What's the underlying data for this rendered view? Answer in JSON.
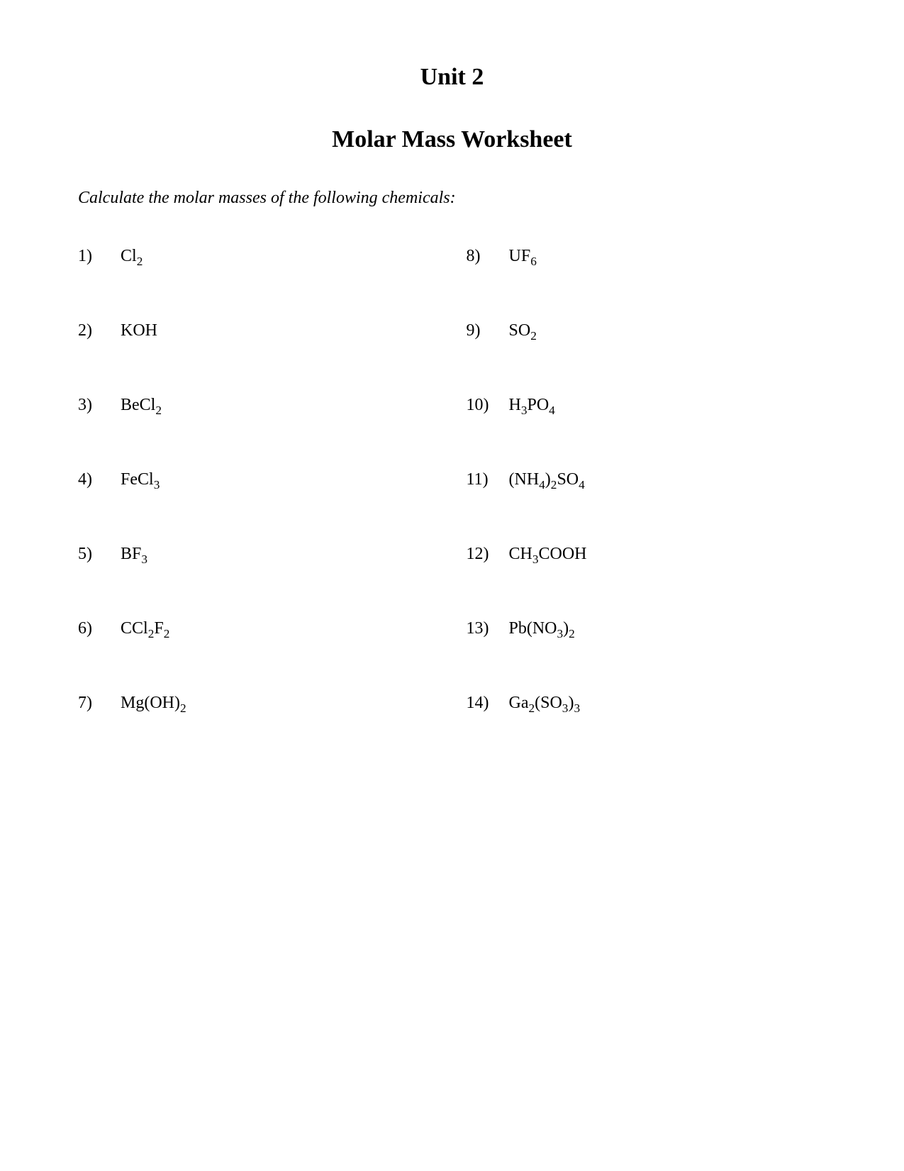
{
  "unit_title": "Unit 2",
  "worksheet_title": "Molar Mass Worksheet",
  "instruction": "Calculate the molar masses of the following chemicals:",
  "font_family": "Times New Roman",
  "title_fontsize": 34,
  "body_fontsize": 24,
  "text_color": "#000000",
  "background_color": "#ffffff",
  "problems_left": [
    {
      "number": "1)",
      "formula_tokens": [
        {
          "t": "Cl"
        },
        {
          "t": "2",
          "sub": true
        }
      ]
    },
    {
      "number": "2)",
      "formula_tokens": [
        {
          "t": "KOH"
        }
      ]
    },
    {
      "number": "3)",
      "formula_tokens": [
        {
          "t": "BeCl"
        },
        {
          "t": "2",
          "sub": true
        }
      ]
    },
    {
      "number": "4)",
      "formula_tokens": [
        {
          "t": "FeCl"
        },
        {
          "t": "3",
          "sub": true
        }
      ]
    },
    {
      "number": "5)",
      "formula_tokens": [
        {
          "t": "BF"
        },
        {
          "t": "3",
          "sub": true
        }
      ]
    },
    {
      "number": "6)",
      "formula_tokens": [
        {
          "t": "CCl"
        },
        {
          "t": "2",
          "sub": true
        },
        {
          "t": "F"
        },
        {
          "t": "2",
          "sub": true
        }
      ]
    },
    {
      "number": "7)",
      "formula_tokens": [
        {
          "t": "Mg(OH)"
        },
        {
          "t": "2",
          "sub": true
        }
      ]
    }
  ],
  "problems_right": [
    {
      "number": "8)",
      "formula_tokens": [
        {
          "t": "UF"
        },
        {
          "t": "6",
          "sub": true
        }
      ]
    },
    {
      "number": "9)",
      "formula_tokens": [
        {
          "t": "SO"
        },
        {
          "t": "2",
          "sub": true
        }
      ]
    },
    {
      "number": "10)",
      "formula_tokens": [
        {
          "t": "H"
        },
        {
          "t": "3",
          "sub": true
        },
        {
          "t": "PO"
        },
        {
          "t": "4",
          "sub": true
        }
      ]
    },
    {
      "number": "11)",
      "formula_tokens": [
        {
          "t": "(NH"
        },
        {
          "t": "4",
          "sub": true
        },
        {
          "t": ")"
        },
        {
          "t": "2",
          "sub": true
        },
        {
          "t": "SO"
        },
        {
          "t": "4",
          "sub": true
        }
      ]
    },
    {
      "number": "12)",
      "formula_tokens": [
        {
          "t": "CH"
        },
        {
          "t": "3",
          "sub": true
        },
        {
          "t": "COOH"
        }
      ]
    },
    {
      "number": "13)",
      "formula_tokens": [
        {
          "t": "Pb(NO"
        },
        {
          "t": "3",
          "sub": true
        },
        {
          "t": ")"
        },
        {
          "t": "2",
          "sub": true
        }
      ]
    },
    {
      "number": "14)",
      "formula_tokens": [
        {
          "t": "Ga"
        },
        {
          "t": "2",
          "sub": true
        },
        {
          "t": "(SO"
        },
        {
          "t": "3",
          "sub": true
        },
        {
          "t": ")"
        },
        {
          "t": "3",
          "sub": true
        }
      ]
    }
  ]
}
